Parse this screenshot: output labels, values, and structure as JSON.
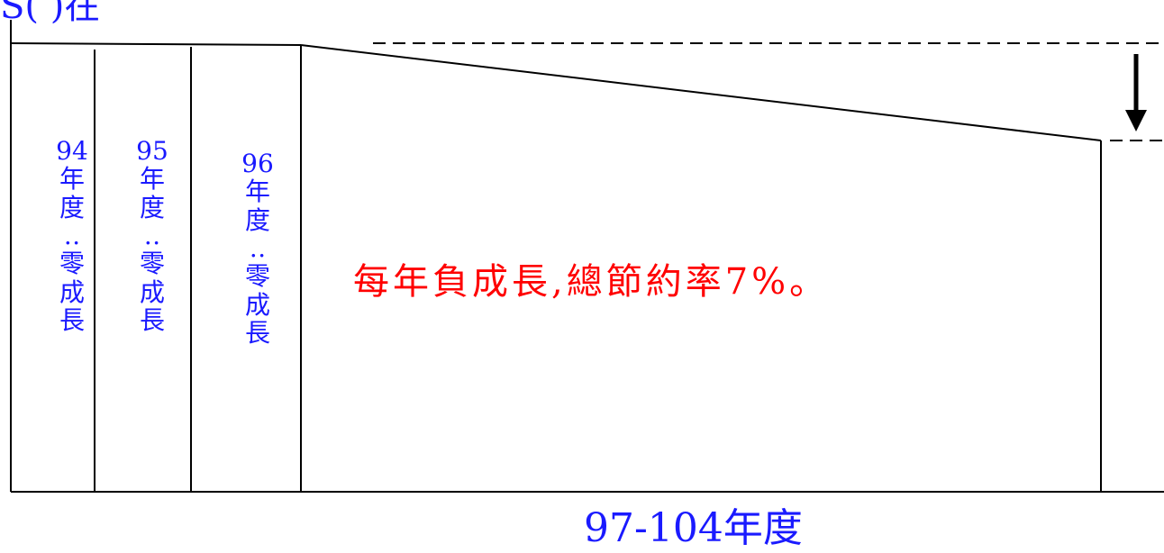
{
  "top_partial_label": "S(  )在",
  "years": [
    {
      "year": "94",
      "text": "年度：零成長"
    },
    {
      "year": "95",
      "text": "年度：零成長"
    },
    {
      "year": "96",
      "text": "年度：零成長"
    }
  ],
  "main_note": "每年負成長,總節約率7%。",
  "x_label": "97-104年度",
  "colors": {
    "blue": "#1a1aff",
    "red": "#ff0000",
    "line": "#000000"
  }
}
